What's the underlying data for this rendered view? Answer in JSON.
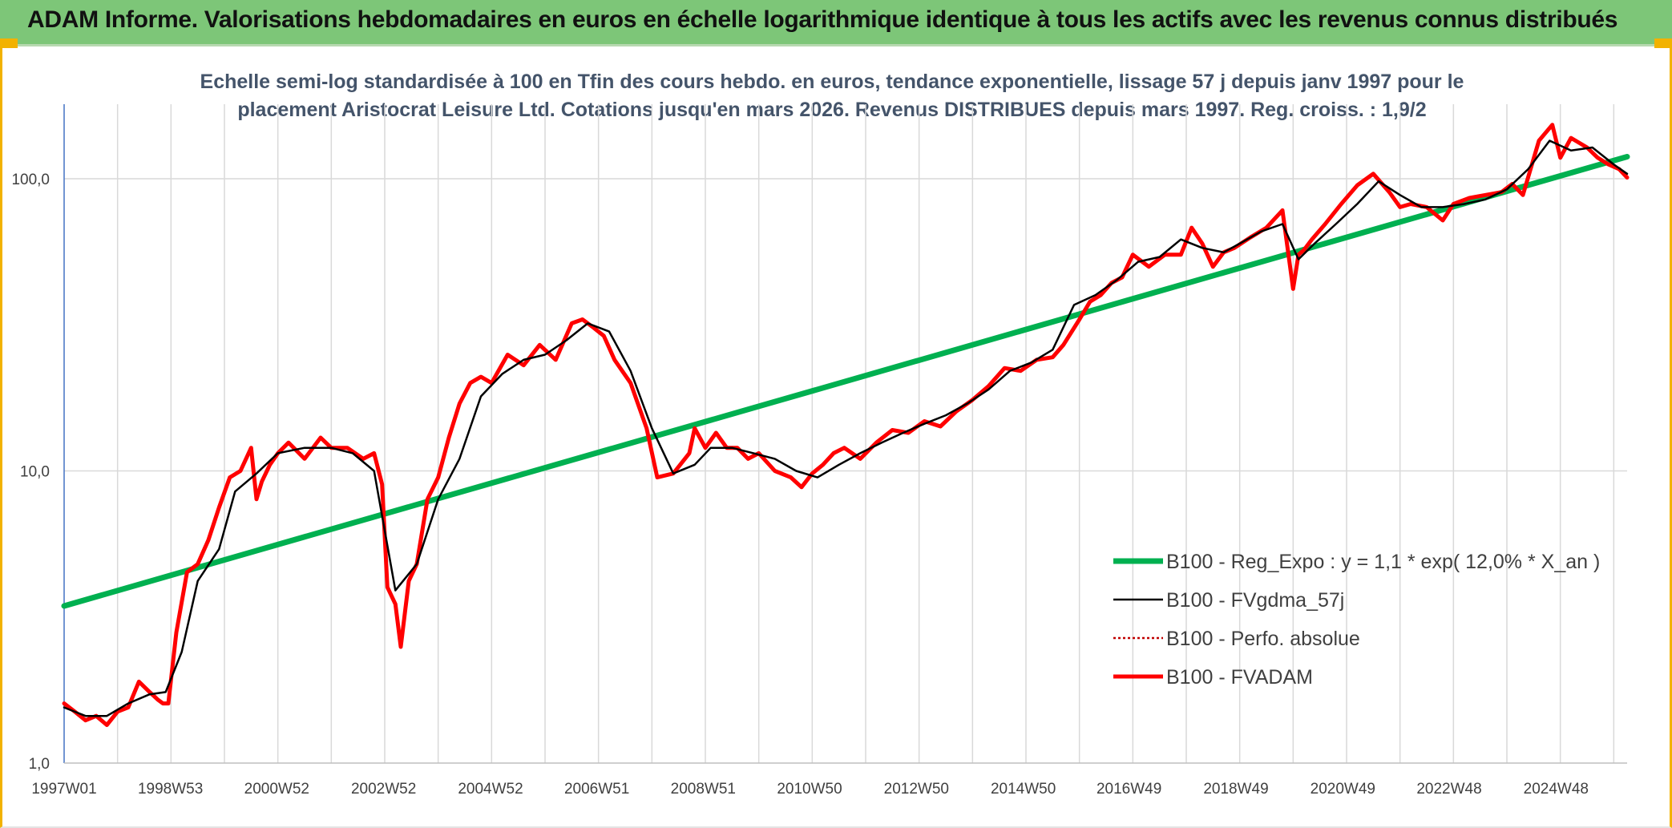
{
  "header": {
    "title": "ADAM Informe. Valorisations hebdomadaires en euros en échelle logarithmique identique à tous les actifs avec les revenus connus distribués"
  },
  "colors": {
    "banner": "#7dc678",
    "accent": "#f2b200",
    "regression": "#00b050",
    "fvadam": "#ff0000",
    "fvgdma": "#000000",
    "perfo": "#c00000"
  },
  "chart_data": {
    "type": "line",
    "title_lines": [
      "Echelle semi-log standardisée à 100 en Tfin des cours hebdo. en euros, tendance exponentielle, lissage 57 j depuis janv 1997 pour le",
      "placement Aristocrat Leisure Ltd. Cotations jusqu'en mars 2026. Revenus DISTRIBUES depuis mars 1997. Reg. croiss. : 1,9/2"
    ],
    "y_scale": "log",
    "ylim": [
      1,
      180
    ],
    "y_ticks": [
      {
        "value": 1,
        "label": "1,0"
      },
      {
        "value": 10,
        "label": "10,0"
      },
      {
        "value": 100,
        "label": "100,0"
      }
    ],
    "xlim": [
      1997.0,
      2026.25
    ],
    "x_ticks": [
      {
        "value": 1997.0,
        "label": "1997W01"
      },
      {
        "value": 1998.99,
        "label": "1998W53"
      },
      {
        "value": 2000.98,
        "label": "2000W52"
      },
      {
        "value": 2002.98,
        "label": "2002W52"
      },
      {
        "value": 2004.98,
        "label": "2004W52"
      },
      {
        "value": 2006.97,
        "label": "2006W51"
      },
      {
        "value": 2008.96,
        "label": "2008W51"
      },
      {
        "value": 2010.95,
        "label": "2010W50"
      },
      {
        "value": 2012.95,
        "label": "2012W50"
      },
      {
        "value": 2014.95,
        "label": "2014W50"
      },
      {
        "value": 2016.93,
        "label": "2016W49"
      },
      {
        "value": 2018.93,
        "label": "2018W49"
      },
      {
        "value": 2020.93,
        "label": "2020W49"
      },
      {
        "value": 2022.92,
        "label": "2022W48"
      },
      {
        "value": 2024.92,
        "label": "2024W48"
      }
    ],
    "legend_position": "bottom-right",
    "grid": "vertical",
    "series": [
      {
        "name": "B100 - Reg_Expo : y = 1,1 * exp( 12,0% *  X_an )",
        "style": "thick-green",
        "x": [
          1997.0,
          2026.25
        ],
        "y": [
          3.45,
          119
        ]
      },
      {
        "name": "B100 - FVgdma_57j",
        "style": "black",
        "x": [
          1997.0,
          1997.4,
          1997.8,
          1998.2,
          1998.6,
          1998.9,
          1999.2,
          1999.5,
          1999.9,
          2000.2,
          2000.6,
          2001.0,
          2001.5,
          2002.0,
          2002.4,
          2002.8,
          2003.2,
          2003.6,
          2004.0,
          2004.4,
          2004.8,
          2005.2,
          2005.6,
          2006.0,
          2006.4,
          2006.8,
          2007.2,
          2007.6,
          2008.0,
          2008.4,
          2008.8,
          2009.1,
          2009.5,
          2009.9,
          2010.3,
          2010.7,
          2011.1,
          2011.5,
          2011.9,
          2012.3,
          2012.7,
          2013.1,
          2013.5,
          2013.9,
          2014.3,
          2014.7,
          2015.1,
          2015.5,
          2015.9,
          2016.3,
          2016.7,
          2017.1,
          2017.5,
          2017.9,
          2018.3,
          2018.7,
          2019.0,
          2019.4,
          2019.8,
          2020.1,
          2020.4,
          2020.8,
          2021.2,
          2021.6,
          2022.0,
          2022.4,
          2022.8,
          2023.2,
          2023.6,
          2024.0,
          2024.4,
          2024.8,
          2025.2,
          2025.6,
          2026.0,
          2026.25
        ],
        "y": [
          1.55,
          1.45,
          1.45,
          1.6,
          1.72,
          1.75,
          2.4,
          4.2,
          5.4,
          8.5,
          9.8,
          11.5,
          12.0,
          12.0,
          11.5,
          10.0,
          3.9,
          4.8,
          8.0,
          11.0,
          18.0,
          21.5,
          24.0,
          25.0,
          28.0,
          32.0,
          30.0,
          22.0,
          14.0,
          9.8,
          10.5,
          12.0,
          12.0,
          11.5,
          11.0,
          10.0,
          9.5,
          10.5,
          11.5,
          12.5,
          13.5,
          14.5,
          15.5,
          17.0,
          19.0,
          22.0,
          23.5,
          26.0,
          37.0,
          40.0,
          45.0,
          52.0,
          54.0,
          62.0,
          58.0,
          56.0,
          60.0,
          66.0,
          70.0,
          53.0,
          60.0,
          70.0,
          82.0,
          98.0,
          88.0,
          80.0,
          80.0,
          82.0,
          85.0,
          92.0,
          108.0,
          135.0,
          125.0,
          128.0,
          112.0,
          104.0
        ]
      },
      {
        "name": "B100 - Perfo. absolue",
        "style": "dotted-darkred"
      },
      {
        "name": "B100 - FVADAM",
        "style": "thick-red",
        "x": [
          1997.0,
          1997.2,
          1997.4,
          1997.6,
          1997.8,
          1998.0,
          1998.2,
          1998.4,
          1998.6,
          1998.75,
          1998.85,
          1998.95,
          1999.1,
          1999.3,
          1999.5,
          1999.7,
          1999.9,
          2000.1,
          2000.3,
          2000.5,
          2000.6,
          2000.7,
          2000.85,
          2001.0,
          2001.2,
          2001.5,
          2001.8,
          2002.0,
          2002.3,
          2002.6,
          2002.8,
          2002.95,
          2003.05,
          2003.2,
          2003.3,
          2003.45,
          2003.6,
          2003.8,
          2004.0,
          2004.2,
          2004.4,
          2004.6,
          2004.8,
          2005.0,
          2005.3,
          2005.6,
          2005.9,
          2006.2,
          2006.5,
          2006.7,
          2006.9,
          2007.1,
          2007.3,
          2007.6,
          2007.9,
          2008.1,
          2008.4,
          2008.7,
          2008.8,
          2009.0,
          2009.2,
          2009.4,
          2009.6,
          2009.8,
          2010.0,
          2010.3,
          2010.6,
          2010.8,
          2011.0,
          2011.2,
          2011.4,
          2011.6,
          2011.9,
          2012.2,
          2012.5,
          2012.8,
          2013.1,
          2013.4,
          2013.7,
          2014.0,
          2014.3,
          2014.6,
          2014.9,
          2015.2,
          2015.5,
          2015.7,
          2016.0,
          2016.2,
          2016.4,
          2016.6,
          2016.8,
          2017.0,
          2017.3,
          2017.6,
          2017.9,
          2018.1,
          2018.3,
          2018.5,
          2018.7,
          2018.9,
          2019.2,
          2019.5,
          2019.8,
          2020.0,
          2020.1,
          2020.2,
          2020.35,
          2020.6,
          2020.9,
          2021.2,
          2021.5,
          2021.8,
          2022.0,
          2022.2,
          2022.5,
          2022.8,
          2023.0,
          2023.3,
          2023.6,
          2023.9,
          2024.1,
          2024.3,
          2024.6,
          2024.85,
          2025.0,
          2025.2,
          2025.5,
          2025.7,
          2025.9,
          2026.1,
          2026.25
        ],
        "y": [
          1.6,
          1.5,
          1.4,
          1.45,
          1.35,
          1.5,
          1.55,
          1.9,
          1.75,
          1.65,
          1.6,
          1.6,
          2.8,
          4.5,
          4.8,
          5.8,
          7.5,
          9.5,
          10.0,
          12.0,
          8.0,
          9.2,
          10.5,
          11.5,
          12.5,
          11.0,
          13.0,
          12.0,
          12.0,
          11.0,
          11.5,
          9.0,
          4.0,
          3.5,
          2.5,
          4.2,
          4.8,
          8.0,
          9.5,
          13.0,
          17.0,
          20.0,
          21.0,
          20.0,
          25.0,
          23.0,
          27.0,
          24.0,
          32.0,
          33.0,
          31.0,
          29.0,
          24.0,
          20.0,
          14.0,
          9.5,
          9.8,
          11.5,
          14.0,
          12.0,
          13.5,
          12.0,
          12.0,
          11.0,
          11.5,
          10.0,
          9.5,
          8.8,
          9.8,
          10.5,
          11.5,
          12.0,
          11.0,
          12.5,
          13.8,
          13.5,
          14.8,
          14.2,
          16.0,
          17.5,
          19.5,
          22.5,
          22.0,
          24.0,
          24.5,
          27.0,
          33.0,
          38.0,
          40.0,
          44.0,
          46.0,
          55.0,
          50.0,
          55.0,
          55.0,
          68.0,
          60.0,
          50.0,
          56.0,
          58.0,
          63.0,
          68.0,
          78.0,
          42.0,
          55.0,
          57.0,
          62.0,
          70.0,
          82.0,
          95.0,
          104.0,
          90.0,
          80.0,
          82.0,
          80.0,
          72.0,
          82.0,
          86.0,
          88.0,
          90.0,
          96.0,
          88.0,
          135.0,
          153.0,
          118.0,
          138.0,
          128.0,
          118.0,
          112.0,
          108.0,
          101.0
        ]
      }
    ]
  }
}
